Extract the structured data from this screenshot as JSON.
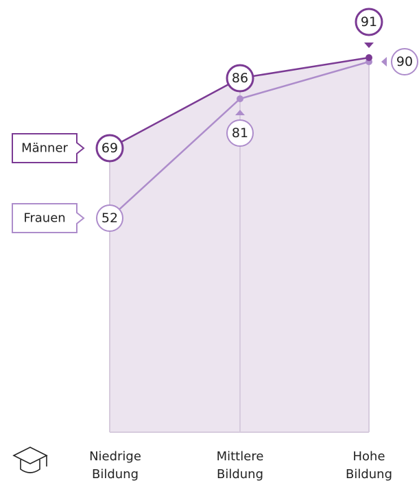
{
  "chart_data": {
    "type": "line",
    "categories": [
      "Niedrige Bildung",
      "Mittlere Bildung",
      "Hohe Bildung"
    ],
    "series": [
      {
        "name": "Männer",
        "color": "#7b3a94",
        "values": [
          69,
          86,
          91
        ]
      },
      {
        "name": "Frauen",
        "color": "#ad8ccb",
        "values": [
          52,
          81,
          90
        ]
      }
    ],
    "ylim": [
      0,
      100
    ]
  }
}
